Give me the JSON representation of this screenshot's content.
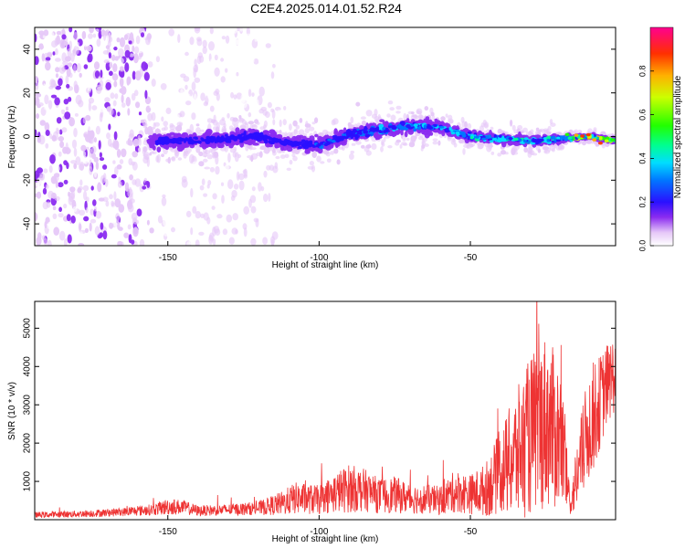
{
  "title": "C2E4.2025.014.01.52.R24",
  "chart_data": [
    {
      "type": "heatmap",
      "xlabel": "Height of straight line (km)",
      "ylabel": "Frequency (Hz)",
      "xlim": [
        -194,
        -2
      ],
      "ylim": [
        -50,
        50
      ],
      "x_ticks": [
        -150,
        -100,
        -50
      ],
      "x_tick_labels": [
        "-150",
        "-100",
        "-50"
      ],
      "y_ticks": [
        -40,
        -20,
        0,
        20,
        40
      ],
      "y_tick_labels": [
        "-40",
        "-20",
        "0",
        "20",
        "40"
      ],
      "colorbar": {
        "label": "Normalized spectral amplitude",
        "range": [
          0,
          1
        ],
        "ticks": [
          0.0,
          0.2,
          0.4,
          0.6,
          0.8
        ],
        "tick_labels": [
          "0.0",
          "0.2",
          "0.4",
          "0.6",
          "0.8"
        ]
      },
      "trace": {
        "x": [
          -150,
          -140,
          -130,
          -120,
          -110,
          -100,
          -90,
          -80,
          -70,
          -60,
          -50,
          -40,
          -30,
          -20,
          -10,
          -2
        ],
        "center_freq": [
          -2,
          -2,
          -1,
          0,
          -3,
          -4,
          1,
          3,
          5,
          4,
          0,
          -1,
          -2,
          -1,
          0,
          -2
        ],
        "amplitude": [
          0.22,
          0.2,
          0.2,
          0.18,
          0.22,
          0.3,
          0.32,
          0.38,
          0.42,
          0.4,
          0.45,
          0.5,
          0.5,
          0.55,
          0.85,
          0.9
        ]
      }
    },
    {
      "type": "line",
      "xlabel": "Height of straight line (km)",
      "ylabel": "SNR (10 * v/v)",
      "xlim": [
        -194,
        -2
      ],
      "ylim": [
        0,
        5700
      ],
      "x_ticks": [
        -150,
        -100,
        -50
      ],
      "x_tick_labels": [
        "-150",
        "-100",
        "-50"
      ],
      "y_ticks": [
        1000,
        2000,
        3000,
        4000,
        5000
      ],
      "y_tick_labels": [
        "1000",
        "2000",
        "3000",
        "4000",
        "5000"
      ],
      "series": [
        {
          "color": "#ee3333",
          "x": [
            -194,
            -180,
            -165,
            -155,
            -150,
            -145,
            -140,
            -130,
            -120,
            -112,
            -108,
            -100,
            -95,
            -90,
            -85,
            -80,
            -75,
            -70,
            -65,
            -60,
            -55,
            -50,
            -45,
            -40,
            -35,
            -30,
            -25,
            -20,
            -17,
            -15,
            -12,
            -10,
            -8,
            -5,
            -2
          ],
          "y": [
            120,
            150,
            200,
            260,
            340,
            330,
            230,
            260,
            300,
            430,
            560,
            520,
            690,
            820,
            770,
            620,
            650,
            550,
            540,
            500,
            740,
            660,
            780,
            1250,
            1650,
            2200,
            2600,
            2100,
            380,
            1050,
            2100,
            2600,
            2900,
            3500,
            3850
          ],
          "spread": [
            80,
            90,
            110,
            150,
            220,
            190,
            140,
            150,
            180,
            320,
            420,
            380,
            520,
            640,
            560,
            460,
            480,
            400,
            390,
            380,
            560,
            520,
            700,
            1100,
            1700,
            2100,
            2300,
            1900,
            250,
            900,
            1300,
            1500,
            1300,
            1100,
            1000
          ]
        }
      ]
    }
  ]
}
